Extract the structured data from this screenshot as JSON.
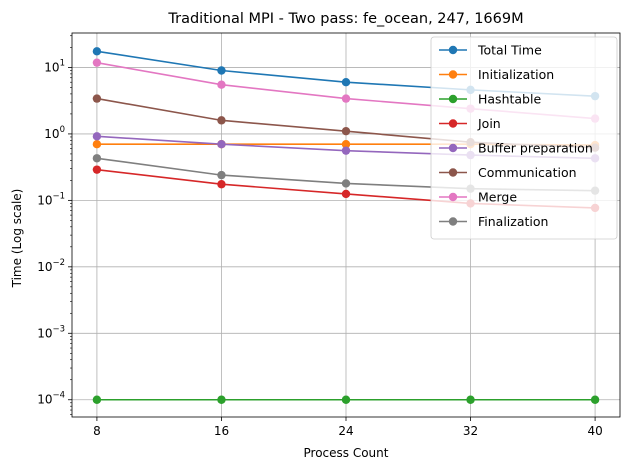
{
  "chart_data": {
    "type": "line",
    "title": "Traditional MPI - Two pass: fe_ocean, 247, 1669M",
    "xlabel": "Process Count",
    "ylabel": "Time (Log scale)",
    "x": [
      8,
      16,
      24,
      32,
      40
    ],
    "x_tick_labels": [
      "8",
      "16",
      "24",
      "32",
      "40"
    ],
    "y_scale": "log",
    "ylim": [
      5.5e-05,
      33
    ],
    "y_ticks": [
      {
        "value": 0.0001,
        "base": "10",
        "exp": "−4"
      },
      {
        "value": 0.001,
        "base": "10",
        "exp": "−3"
      },
      {
        "value": 0.01,
        "base": "10",
        "exp": "−2"
      },
      {
        "value": 0.1,
        "base": "10",
        "exp": "−1"
      },
      {
        "value": 1,
        "base": "10",
        "exp": "0"
      },
      {
        "value": 10,
        "base": "10",
        "exp": "1"
      }
    ],
    "grid": true,
    "legend_position": "top-right",
    "series": [
      {
        "name": "Total Time",
        "color": "#1f77b4",
        "values": [
          17.5,
          9.0,
          6.0,
          4.6,
          3.7
        ]
      },
      {
        "name": "Initialization",
        "color": "#ff7f0e",
        "values": [
          0.7,
          0.7,
          0.7,
          0.7,
          0.68
        ]
      },
      {
        "name": "Hashtable",
        "color": "#2ca02c",
        "values": [
          0.0001,
          0.0001,
          0.0001,
          0.0001,
          0.0001
        ]
      },
      {
        "name": "Join",
        "color": "#d62728",
        "values": [
          0.29,
          0.175,
          0.125,
          0.09,
          0.077
        ]
      },
      {
        "name": "Buffer preparation",
        "color": "#9467bd",
        "values": [
          0.92,
          0.7,
          0.56,
          0.48,
          0.43
        ]
      },
      {
        "name": "Communication",
        "color": "#8c564b",
        "values": [
          3.4,
          1.6,
          1.1,
          0.75,
          0.62
        ]
      },
      {
        "name": "Merge",
        "color": "#e377c2",
        "values": [
          11.8,
          5.5,
          3.4,
          2.4,
          1.7
        ]
      },
      {
        "name": "Finalization",
        "color": "#7f7f7f",
        "values": [
          0.43,
          0.24,
          0.18,
          0.15,
          0.14
        ]
      }
    ]
  }
}
